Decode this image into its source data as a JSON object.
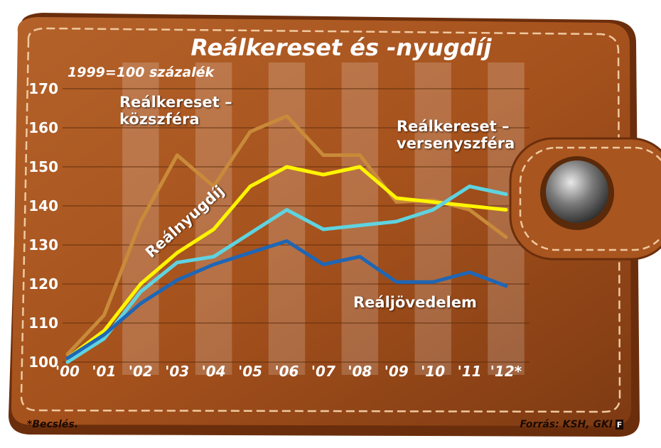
{
  "chart_data": {
    "type": "line",
    "title": "Reálkereset és -nyugdíj",
    "subtitle": "1999=100 százalék",
    "categories": [
      "'00",
      "'01",
      "'02",
      "'03",
      "'04",
      "'05",
      "'06",
      "'07",
      "'08",
      "'09",
      "'10",
      "'11",
      "'12*"
    ],
    "series": [
      {
        "name": "Reálkereset – közszféra",
        "color": "#c98a3a",
        "values": [
          102,
          112,
          136,
          153,
          145,
          159,
          163,
          153,
          153,
          141,
          141.5,
          139,
          132
        ]
      },
      {
        "name": "Reálnyugdíj",
        "color": "#fff500",
        "values": [
          101,
          108,
          120,
          128,
          134,
          145,
          150,
          148,
          150,
          142,
          141,
          140,
          139
        ]
      },
      {
        "name": "Reálkereset – versenyszféra",
        "color": "#5fd3e0",
        "values": [
          100,
          106,
          118,
          125.5,
          127,
          133,
          139,
          134,
          135,
          136,
          139,
          145,
          143
        ]
      },
      {
        "name": "Reáljövedelem",
        "color": "#1f66b5",
        "values": [
          101,
          107,
          115,
          121,
          125,
          128,
          131,
          125,
          127,
          120.5,
          120.5,
          123,
          119.5
        ]
      }
    ],
    "ylim": [
      100,
      170
    ],
    "yticks": [
      100,
      110,
      120,
      130,
      140,
      150,
      160,
      170
    ],
    "grid": true,
    "footnote": "*Becslés.",
    "source": "Forrás: KSH, GKI",
    "logo": "F"
  }
}
